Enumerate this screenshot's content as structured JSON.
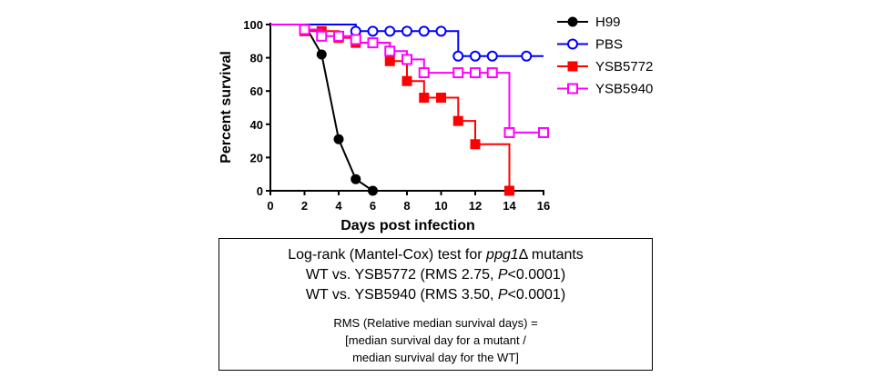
{
  "chart_data": {
    "type": "line",
    "step": true,
    "xlabel": "Days post infection",
    "ylabel": "Percent survival",
    "xlim": [
      0,
      16
    ],
    "ylim": [
      0,
      100
    ],
    "xticks": [
      "0",
      "2",
      "4",
      "6",
      "8",
      "10",
      "12",
      "14",
      "16"
    ],
    "yticks": [
      "0",
      "20",
      "40",
      "60",
      "80",
      "100"
    ],
    "grid": false,
    "legend": "right",
    "series": [
      {
        "name": "H99",
        "color": "#000000",
        "marker": "filled-circle",
        "points": [
          [
            0,
            100
          ],
          [
            2,
            100
          ],
          [
            3,
            82
          ],
          [
            4,
            31
          ],
          [
            5,
            7
          ],
          [
            6,
            0
          ]
        ],
        "markers": [
          [
            3,
            82
          ],
          [
            4,
            31
          ],
          [
            5,
            7
          ],
          [
            6,
            0
          ]
        ]
      },
      {
        "name": "PBS",
        "color": "#0000ff",
        "marker": "open-circle",
        "points": [
          [
            0,
            100
          ],
          [
            5,
            100
          ],
          [
            5,
            96
          ],
          [
            10,
            96
          ],
          [
            11,
            96
          ],
          [
            11,
            81
          ],
          [
            16,
            81
          ]
        ],
        "markers": [
          [
            5,
            96
          ],
          [
            6,
            96
          ],
          [
            7,
            96
          ],
          [
            8,
            96
          ],
          [
            9,
            96
          ],
          [
            10,
            96
          ],
          [
            11,
            81
          ],
          [
            12,
            81
          ],
          [
            13,
            81
          ],
          [
            15,
            81
          ]
        ]
      },
      {
        "name": "YSB5772",
        "color": "#ff0000",
        "marker": "filled-square",
        "points": [
          [
            0,
            100
          ],
          [
            2,
            100
          ],
          [
            2,
            96
          ],
          [
            4,
            96
          ],
          [
            4,
            92
          ],
          [
            5,
            92
          ],
          [
            5,
            89
          ],
          [
            7,
            89
          ],
          [
            7,
            78
          ],
          [
            8,
            78
          ],
          [
            8,
            66
          ],
          [
            9,
            66
          ],
          [
            9,
            56
          ],
          [
            10,
            56
          ],
          [
            11,
            56
          ],
          [
            11,
            42
          ],
          [
            12,
            42
          ],
          [
            12,
            28
          ],
          [
            14,
            28
          ],
          [
            14,
            0
          ]
        ],
        "markers": [
          [
            2,
            96
          ],
          [
            3,
            96
          ],
          [
            4,
            92
          ],
          [
            5,
            89
          ],
          [
            6,
            89
          ],
          [
            7,
            78
          ],
          [
            8,
            66
          ],
          [
            9,
            56
          ],
          [
            10,
            56
          ],
          [
            11,
            42
          ],
          [
            12,
            28
          ],
          [
            14,
            0
          ]
        ]
      },
      {
        "name": "YSB5940",
        "color": "#ff00ff",
        "marker": "open-square",
        "points": [
          [
            0,
            100
          ],
          [
            2,
            100
          ],
          [
            2,
            97
          ],
          [
            3,
            97
          ],
          [
            3,
            93
          ],
          [
            5,
            93
          ],
          [
            5,
            89
          ],
          [
            7,
            89
          ],
          [
            7,
            84
          ],
          [
            8,
            84
          ],
          [
            8,
            79
          ],
          [
            9,
            79
          ],
          [
            9,
            71
          ],
          [
            13,
            71
          ],
          [
            14,
            71
          ],
          [
            14,
            35
          ],
          [
            16,
            35
          ]
        ],
        "markers": [
          [
            2,
            97
          ],
          [
            3,
            93
          ],
          [
            4,
            93
          ],
          [
            5,
            91
          ],
          [
            6,
            89
          ],
          [
            7,
            84
          ],
          [
            8,
            79
          ],
          [
            9,
            71
          ],
          [
            11,
            71
          ],
          [
            12,
            71
          ],
          [
            13,
            71
          ],
          [
            14,
            35
          ],
          [
            16,
            35
          ]
        ]
      }
    ]
  },
  "stats_box": {
    "line1_prefix": "Log-rank (Mantel-Cox) test for ",
    "line1_gene": "ppg1",
    "line1_suffix": "Δ mutants",
    "line2_prefix": "WT vs. YSB5772 (RMS 2.75, ",
    "line2_p": "P",
    "line2_suffix": "<0.0001)",
    "line3_prefix": "WT vs. YSB5940 (RMS 3.50, ",
    "line3_p": "P",
    "line3_suffix": "<0.0001)",
    "note1": "RMS (Relative median survival days) =",
    "note2": "[median survival day for a mutant  /",
    "note3": "median survival day for the WT]"
  }
}
